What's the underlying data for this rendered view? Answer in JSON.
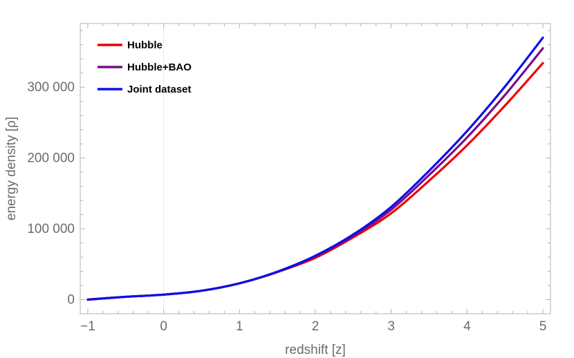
{
  "chart_data": {
    "type": "line",
    "title": "",
    "xlabel": "redshift [z]",
    "ylabel": "energy density [ρ]",
    "xlim": [
      -1.1,
      5.1
    ],
    "ylim": [
      -20000,
      390000
    ],
    "x_ticks": [
      -1,
      0,
      1,
      2,
      3,
      4,
      5
    ],
    "x_tick_labels": [
      "−1",
      "0",
      "1",
      "2",
      "3",
      "4",
      "5"
    ],
    "y_ticks": [
      0,
      100000,
      200000,
      300000
    ],
    "y_tick_labels": [
      "0",
      "100 000",
      "200 000",
      "300 000"
    ],
    "grid": false,
    "legend_position": "top-left",
    "x": [
      -1,
      -0.5,
      0,
      0.5,
      1,
      1.5,
      2,
      2.5,
      3,
      3.5,
      4,
      4.5,
      5
    ],
    "series": [
      {
        "name": "Hubble",
        "color": "#ee0000",
        "values": [
          0,
          4000,
          7000,
          12500,
          23000,
          39000,
          59000,
          88000,
          122000,
          168000,
          218000,
          274000,
          334000
        ]
      },
      {
        "name": "Hubble+BAO",
        "color": "#7a0d8a",
        "values": [
          0,
          4000,
          7000,
          12500,
          23000,
          39000,
          61000,
          90000,
          127000,
          176000,
          229000,
          289000,
          355000
        ]
      },
      {
        "name": "Joint dataset",
        "color": "#0a10e8",
        "values": [
          0,
          4000,
          7000,
          12500,
          23000,
          39500,
          62000,
          92000,
          131000,
          182000,
          238000,
          301000,
          370000
        ]
      }
    ]
  }
}
